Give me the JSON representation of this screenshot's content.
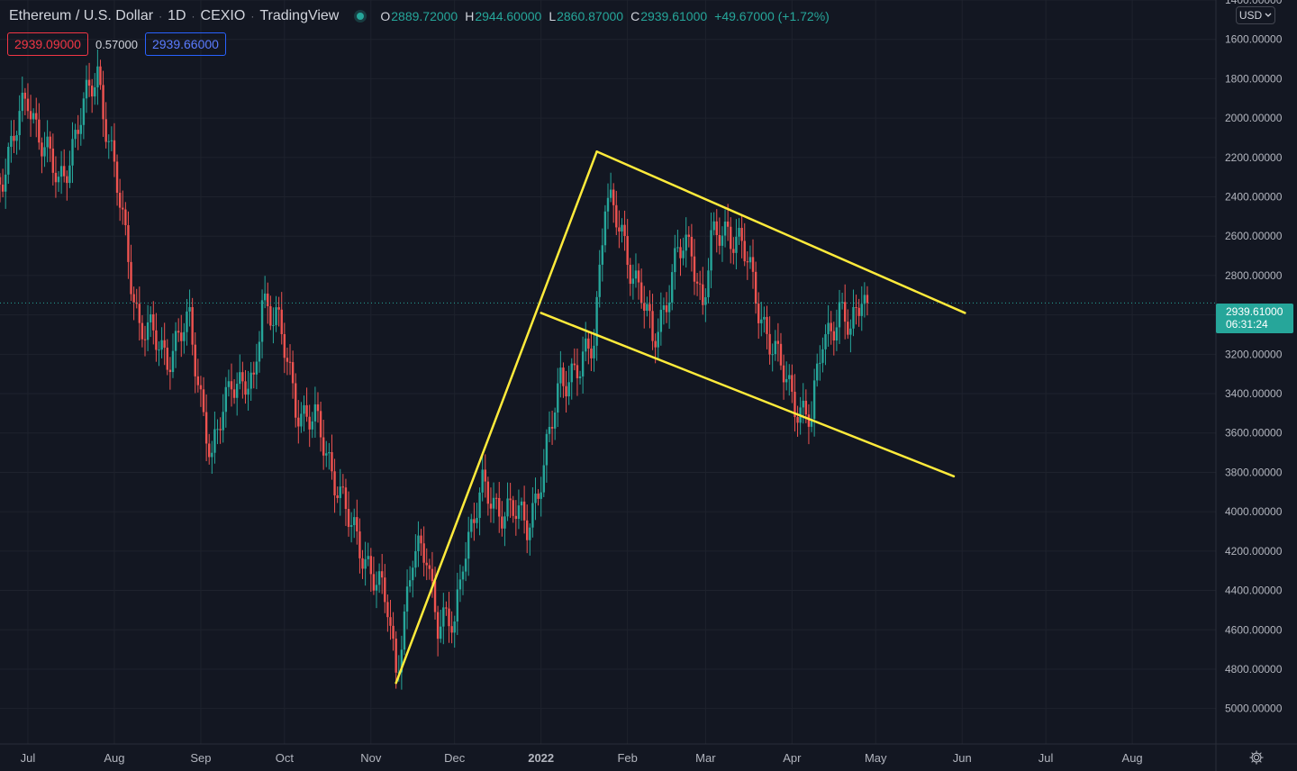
{
  "legend": {
    "symbol": "Ethereum / U.S. Dollar",
    "interval": "1D",
    "exchange": "CEXIO",
    "source": "TradingView",
    "open_label": "O",
    "open": "2889.72000",
    "high_label": "H",
    "high": "2944.60000",
    "low_label": "L",
    "low": "2860.87000",
    "close_label": "C",
    "close": "2939.61000",
    "change": "+49.67000 (+1.72%)"
  },
  "quotes": {
    "bid": "2939.09000",
    "spread": "0.57000",
    "ask": "2939.66000"
  },
  "currency": {
    "label": "USD",
    "icon": "chevron-down-icon"
  },
  "last_price": {
    "price": "2939.61000",
    "countdown": "06:31:24"
  },
  "settings_icon": "gear-icon",
  "colors": {
    "background": "#131722",
    "up": "#26a69a",
    "down": "#ef5350",
    "trendline": "#ffeb3b",
    "grid": "#1e222d"
  },
  "chart_data": {
    "type": "candlestick",
    "axis_inverted": true,
    "ylim": [
      1400,
      5180
    ],
    "y_ticks": [
      "1400.00000",
      "1600.00000",
      "1800.00000",
      "2000.00000",
      "2200.00000",
      "2400.00000",
      "2600.00000",
      "2800.00000",
      "3000.00000",
      "3200.00000",
      "3400.00000",
      "3600.00000",
      "3800.00000",
      "4000.00000",
      "4200.00000",
      "4400.00000",
      "4600.00000",
      "4800.00000",
      "5000.00000"
    ],
    "x_range": [
      "2021-06-21",
      "2022-08-31"
    ],
    "x_ticks": [
      {
        "date": "2021-07-01",
        "label": "Jul"
      },
      {
        "date": "2021-08-01",
        "label": "Aug"
      },
      {
        "date": "2021-09-01",
        "label": "Sep"
      },
      {
        "date": "2021-10-01",
        "label": "Oct"
      },
      {
        "date": "2021-11-01",
        "label": "Nov"
      },
      {
        "date": "2021-12-01",
        "label": "Dec"
      },
      {
        "date": "2022-01-01",
        "label": "2022"
      },
      {
        "date": "2022-02-01",
        "label": "Feb"
      },
      {
        "date": "2022-03-01",
        "label": "Mar"
      },
      {
        "date": "2022-04-01",
        "label": "Apr"
      },
      {
        "date": "2022-05-01",
        "label": "May"
      },
      {
        "date": "2022-06-01",
        "label": "Jun"
      },
      {
        "date": "2022-07-01",
        "label": "Jul"
      },
      {
        "date": "2022-08-01",
        "label": "Aug"
      }
    ],
    "last_price": 2939.61,
    "price_path": [
      {
        "date": "2021-06-21",
        "price": 2300
      },
      {
        "date": "2021-07-01",
        "price": 1900
      },
      {
        "date": "2021-07-12",
        "price": 2350
      },
      {
        "date": "2021-07-20",
        "price": 2000
      },
      {
        "date": "2021-07-26",
        "price": 1760
      },
      {
        "date": "2021-08-03",
        "price": 2450
      },
      {
        "date": "2021-08-10",
        "price": 3050
      },
      {
        "date": "2021-08-20",
        "price": 3200
      },
      {
        "date": "2021-08-28",
        "price": 3050
      },
      {
        "date": "2021-09-05",
        "price": 3750
      },
      {
        "date": "2021-09-12",
        "price": 3300
      },
      {
        "date": "2021-09-20",
        "price": 3400
      },
      {
        "date": "2021-09-23",
        "price": 2900
      },
      {
        "date": "2021-09-28",
        "price": 3000
      },
      {
        "date": "2021-10-05",
        "price": 3450
      },
      {
        "date": "2021-10-12",
        "price": 3550
      },
      {
        "date": "2021-10-20",
        "price": 3850
      },
      {
        "date": "2021-10-25",
        "price": 4100
      },
      {
        "date": "2021-10-31",
        "price": 4250
      },
      {
        "date": "2021-11-07",
        "price": 4500
      },
      {
        "date": "2021-11-10",
        "price": 4800
      },
      {
        "date": "2021-11-16",
        "price": 4250
      },
      {
        "date": "2021-11-21",
        "price": 4200
      },
      {
        "date": "2021-11-25",
        "price": 4550
      },
      {
        "date": "2021-12-01",
        "price": 4600
      },
      {
        "date": "2021-12-04",
        "price": 4200
      },
      {
        "date": "2021-12-11",
        "price": 3900
      },
      {
        "date": "2021-12-20",
        "price": 4000
      },
      {
        "date": "2021-12-27",
        "price": 4050
      },
      {
        "date": "2022-01-02",
        "price": 3800
      },
      {
        "date": "2022-01-08",
        "price": 3300
      },
      {
        "date": "2022-01-15",
        "price": 3300
      },
      {
        "date": "2022-01-20",
        "price": 3100
      },
      {
        "date": "2022-01-24",
        "price": 2400
      },
      {
        "date": "2022-01-30",
        "price": 2600
      },
      {
        "date": "2022-02-06",
        "price": 2900
      },
      {
        "date": "2022-02-10",
        "price": 3150
      },
      {
        "date": "2022-02-14",
        "price": 2950
      },
      {
        "date": "2022-02-19",
        "price": 2700
      },
      {
        "date": "2022-02-24",
        "price": 2650
      },
      {
        "date": "2022-02-28",
        "price": 2950
      },
      {
        "date": "2022-03-03",
        "price": 2650
      },
      {
        "date": "2022-03-09",
        "price": 2550
      },
      {
        "date": "2022-03-14",
        "price": 2650
      },
      {
        "date": "2022-03-20",
        "price": 2950
      },
      {
        "date": "2022-03-27",
        "price": 3250
      },
      {
        "date": "2022-04-03",
        "price": 3450
      },
      {
        "date": "2022-04-08",
        "price": 3550
      },
      {
        "date": "2022-04-12",
        "price": 3100
      },
      {
        "date": "2022-04-18",
        "price": 3000
      },
      {
        "date": "2022-04-22",
        "price": 3100
      },
      {
        "date": "2022-04-26",
        "price": 2850
      },
      {
        "date": "2022-04-28",
        "price": 2940
      }
    ],
    "trendlines": [
      {
        "start": {
          "date": "2021-11-10",
          "price": 4870
        },
        "end": {
          "date": "2022-01-21",
          "price": 2170
        }
      },
      {
        "start": {
          "date": "2022-01-21",
          "price": 2170
        },
        "end": {
          "date": "2022-06-02",
          "price": 2990
        }
      },
      {
        "start": {
          "date": "2022-01-01",
          "price": 2990
        },
        "end": {
          "date": "2022-05-29",
          "price": 3820
        }
      }
    ]
  }
}
